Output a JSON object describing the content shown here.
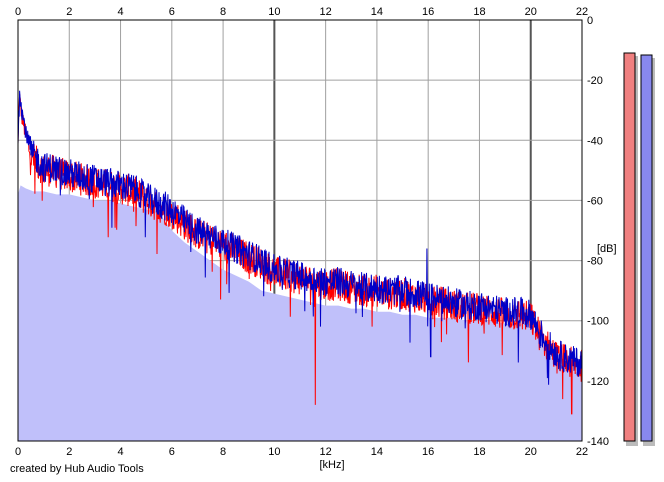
{
  "colors": {
    "background": "#ffffff",
    "fill": "#c0c0fa",
    "grid": "#a0a0a0",
    "grid_major": "#555555",
    "channel_left": "#ff0000",
    "channel_right": "#0000c8",
    "meter_left": "#f08080",
    "meter_right": "#8888ee"
  },
  "credit": "created by Hub Audio Tools",
  "chart_data": {
    "type": "area",
    "xlabel": "[kHz]",
    "ylabel": "[dB]",
    "xlim": [
      0,
      22
    ],
    "ylim": [
      -140,
      0
    ],
    "x_ticks": [
      "0",
      "2",
      "4",
      "6",
      "8",
      "10",
      "12",
      "14",
      "16",
      "18",
      "20",
      "22"
    ],
    "y_ticks": [
      "0",
      "-20",
      "-40",
      "-60",
      "-80",
      "-100",
      "-120",
      "-140"
    ],
    "grid": true,
    "series": [
      {
        "x": [
          0,
          0.05,
          0.15,
          0.3,
          0.5,
          0.8,
          1.0,
          1.3,
          1.6,
          2.0,
          2.5,
          3.0,
          3.5,
          4.0,
          4.5,
          5.0,
          5.5,
          6.0,
          6.5,
          7.0,
          7.5,
          8.0,
          8.5,
          9.0,
          9.5,
          10.0,
          10.5,
          11.0,
          11.5,
          12.0,
          12.5,
          13.0,
          13.5,
          14.0,
          14.5,
          15.0,
          15.5,
          16.0,
          16.5,
          17.0,
          17.5,
          18.0,
          18.5,
          19.0,
          19.5,
          20.0,
          20.3,
          20.6,
          21.0,
          21.5,
          22.0
        ],
        "values": [
          -42,
          -25,
          -32,
          -38,
          -45,
          -48,
          -50,
          -50,
          -51,
          -52,
          -53,
          -54,
          -55,
          -56,
          -57,
          -60,
          -62,
          -64,
          -68,
          -71,
          -73,
          -75,
          -77,
          -79,
          -81,
          -84,
          -85,
          -86,
          -87,
          -88,
          -88,
          -89,
          -90,
          -90,
          -91,
          -91,
          -92,
          -93,
          -94,
          -95,
          -96,
          -96,
          -97,
          -98,
          -98,
          -99,
          -104,
          -108,
          -112,
          -114,
          -115
        ]
      },
      {
        "x": [
          0,
          0.05,
          0.15,
          0.3,
          0.5,
          0.8,
          1.0,
          1.3,
          1.6,
          2.0,
          2.5,
          3.0,
          3.5,
          4.0,
          4.5,
          5.0,
          5.5,
          6.0,
          6.5,
          7.0,
          7.5,
          8.0,
          8.5,
          9.0,
          9.5,
          10.0,
          10.5,
          11.0,
          11.5,
          12.0,
          12.5,
          13.0,
          13.5,
          14.0,
          14.5,
          15.0,
          15.5,
          16.0,
          16.5,
          17.0,
          17.5,
          18.0,
          18.5,
          19.0,
          19.5,
          20.0,
          20.3,
          20.6,
          21.0,
          21.5,
          22.0
        ],
        "values": [
          -40,
          -22,
          -30,
          -37,
          -44,
          -47,
          -49,
          -49,
          -50,
          -51,
          -52,
          -53,
          -54,
          -55,
          -56,
          -59,
          -61,
          -63,
          -67,
          -70,
          -72,
          -74,
          -76,
          -78,
          -80,
          -83,
          -84,
          -85,
          -86,
          -87,
          -87,
          -88,
          -89,
          -89,
          -90,
          -90,
          -91,
          -92,
          -93,
          -94,
          -95,
          -95,
          -96,
          -97,
          -97,
          -98,
          -103,
          -107,
          -111,
          -113,
          -114
        ]
      }
    ],
    "fill_envelope": {
      "x": [
        0,
        0.1,
        0.3,
        0.6,
        1.0,
        1.5,
        2.0,
        2.5,
        3.0,
        3.5,
        4.0,
        4.5,
        5.0,
        5.5,
        6.0,
        6.5,
        7.0,
        7.5,
        8.0,
        8.5,
        9.0,
        9.5,
        10.0,
        10.5,
        11.0,
        11.5,
        12.0,
        12.5,
        13.0,
        13.5,
        14.0,
        14.5,
        15.0,
        15.5,
        16.0,
        16.5,
        17.0,
        17.5,
        18.0,
        18.5,
        19.0,
        19.5,
        20.0,
        20.3,
        20.6,
        21.0,
        21.5,
        22.0
      ],
      "values": [
        -58,
        -55,
        -56,
        -57,
        -57,
        -58,
        -58,
        -59,
        -60,
        -60,
        -61,
        -62,
        -63,
        -64,
        -70,
        -74,
        -77,
        -80,
        -83,
        -85,
        -87,
        -90,
        -91,
        -92,
        -93,
        -94,
        -95,
        -95,
        -96,
        -96,
        -97,
        -97,
        -98,
        -98,
        -99,
        -99,
        -99,
        -100,
        -100,
        -100,
        -101,
        -101,
        -101,
        -106,
        -110,
        -114,
        -116,
        -118
      ]
    },
    "notable_points": [
      {
        "x": 11.6,
        "value": -128
      },
      {
        "x": 15.95,
        "value": -76
      },
      {
        "x": 16.1,
        "value": -112
      },
      {
        "x": 21.6,
        "value": -131
      }
    ]
  }
}
